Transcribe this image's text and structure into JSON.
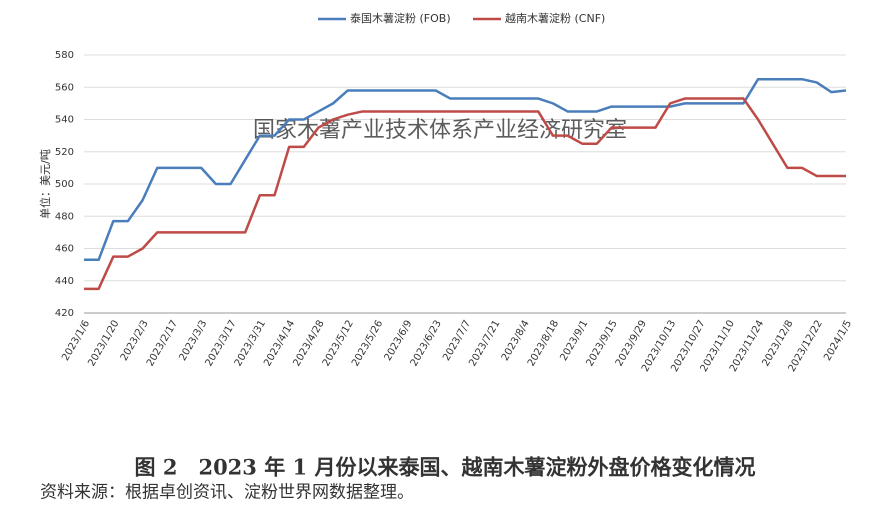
{
  "chart_data": {
    "type": "line",
    "y_label": "单位：美元/吨",
    "watermark": "国家木薯产业技术体系产业经济研究室",
    "categories": [
      "2023/1/6",
      null,
      "2023/1/20",
      null,
      "2023/2/3",
      null,
      "2023/2/17",
      null,
      "2023/3/3",
      null,
      "2023/3/17",
      null,
      "2023/3/31",
      null,
      "2023/4/14",
      null,
      "2023/4/28",
      null,
      "2023/5/12",
      null,
      "2023/5/26",
      null,
      "2023/6/9",
      null,
      "2023/6/23",
      null,
      "2023/7/7",
      null,
      "2023/7/21",
      null,
      "2023/8/4",
      null,
      "2023/8/18",
      null,
      "2023/9/1",
      null,
      "2023/9/15",
      null,
      "2023/9/29",
      null,
      "2023/10/13",
      null,
      "2023/10/27",
      null,
      "2023/11/10",
      null,
      "2023/11/24",
      null,
      "2023/12/8",
      null,
      "2023/12/22",
      null,
      "2024/1/5"
    ],
    "series": [
      {
        "name": "泰国木薯淀粉 (FOB)",
        "color": "#4a7ebb",
        "values": [
          453,
          453,
          477,
          477,
          490,
          510,
          510,
          510,
          510,
          500,
          500,
          515,
          530,
          530,
          540,
          540,
          545,
          550,
          558,
          558,
          558,
          558,
          558,
          558,
          558,
          553,
          553,
          553,
          553,
          553,
          553,
          553,
          550,
          545,
          545,
          545,
          548,
          548,
          548,
          548,
          548,
          550,
          550,
          550,
          550,
          550,
          565,
          565,
          565,
          565,
          563,
          557,
          558
        ]
      },
      {
        "name": "越南木薯淀粉 (CNF)",
        "color": "#be4b48",
        "values": [
          435,
          435,
          455,
          455,
          460,
          470,
          470,
          470,
          470,
          470,
          470,
          470,
          493,
          493,
          523,
          523,
          535,
          540,
          543,
          545,
          545,
          545,
          545,
          545,
          545,
          545,
          545,
          545,
          545,
          545,
          545,
          545,
          530,
          530,
          525,
          525,
          535,
          535,
          535,
          535,
          550,
          553,
          553,
          553,
          553,
          553,
          540,
          525,
          510,
          510,
          505,
          505,
          505
        ]
      }
    ],
    "ylim": [
      420,
      580
    ],
    "yticks": [
      420,
      440,
      460,
      480,
      500,
      520,
      540,
      560,
      580
    ],
    "grid": true
  },
  "caption": "图 2　2023 年 1 月份以来泰国、越南木薯淀粉外盘价格变化情况",
  "source": "资料来源：根据卓创资讯、淀粉世界网数据整理。"
}
